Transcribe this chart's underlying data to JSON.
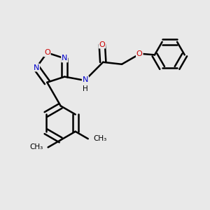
{
  "background_color": "#e9e9e9",
  "bond_color": "#000000",
  "bond_width": 1.8,
  "atom_colors": {
    "N": "#0000cc",
    "O": "#cc0000",
    "C": "#000000",
    "H": "#000000"
  },
  "figsize": [
    3.0,
    3.0
  ],
  "dpi": 100,
  "xlim": [
    0.0,
    1.0
  ],
  "ylim": [
    0.0,
    1.0
  ]
}
